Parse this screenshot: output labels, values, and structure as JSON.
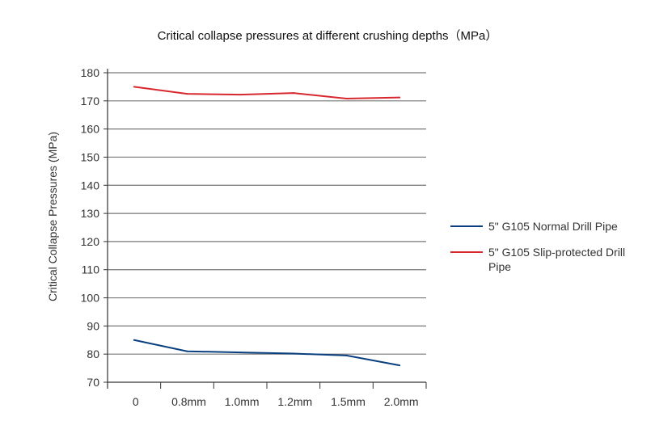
{
  "chart_data": {
    "type": "line",
    "title": "Critical collapse pressures at different crushing depths（MPa）",
    "xlabel": "",
    "ylabel": "Critical Collapse Pressures (MPa)",
    "categories": [
      "0",
      "0.8mm",
      "1.0mm",
      "1.2mm",
      "1.5mm",
      "2.0mm"
    ],
    "ylim": [
      70,
      180
    ],
    "yticks": [
      70,
      80,
      90,
      100,
      110,
      120,
      130,
      140,
      150,
      160,
      170,
      180
    ],
    "grid": true,
    "legend_position": "right",
    "series": [
      {
        "name": "5\" G105 Normal Drill Pipe",
        "color": "#0a3f7f",
        "values": [
          85,
          81,
          80.6,
          80.2,
          79.5,
          76
        ]
      },
      {
        "name": "5\" G105 Slip-protected Drill Pipe",
        "color": "#d8282f",
        "values": [
          175,
          172.5,
          172.2,
          172.8,
          170.8,
          171.2
        ]
      }
    ]
  }
}
